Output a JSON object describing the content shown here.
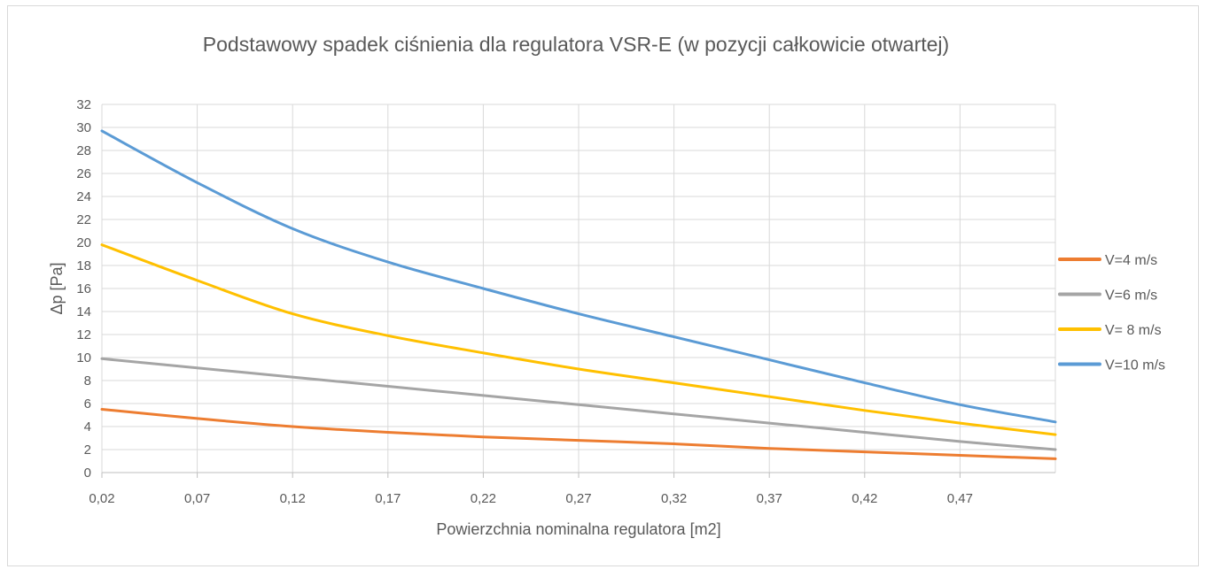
{
  "chart_data": {
    "type": "line",
    "title": "Podstawowy spadek ciśnienia dla regulatora VSR-E (w pozycji całkowicie otwartej)",
    "xlabel": "Powierzchnia nominalna regulatora [m2]",
    "ylabel": "Δp [Pa]",
    "xlim": [
      0.02,
      0.52
    ],
    "ylim": [
      0,
      32
    ],
    "x_ticks": [
      0.02,
      0.07,
      0.12,
      0.17,
      0.22,
      0.27,
      0.32,
      0.37,
      0.42,
      0.47
    ],
    "x_tick_labels": [
      "0,02",
      "0,07",
      "0,12",
      "0,17",
      "0,22",
      "0,27",
      "0,32",
      "0,37",
      "0,42",
      "0,47"
    ],
    "y_ticks": [
      0,
      2,
      4,
      6,
      8,
      10,
      12,
      14,
      16,
      18,
      20,
      22,
      24,
      26,
      28,
      30,
      32
    ],
    "y_tick_labels": [
      "0",
      "2",
      "4",
      "6",
      "8",
      "10",
      "12",
      "14",
      "16",
      "18",
      "20",
      "22",
      "24",
      "26",
      "28",
      "30",
      "32"
    ],
    "grid": true,
    "legend_position": "right",
    "series": [
      {
        "name": "V=4 m/s",
        "color": "#ed7d31",
        "x": [
          0.02,
          0.07,
          0.12,
          0.17,
          0.22,
          0.27,
          0.32,
          0.37,
          0.42,
          0.47,
          0.52
        ],
        "y": [
          5.5,
          4.7,
          4.0,
          3.5,
          3.1,
          2.8,
          2.5,
          2.1,
          1.8,
          1.5,
          1.2
        ]
      },
      {
        "name": "V=6 m/s",
        "color": "#a5a5a5",
        "x": [
          0.02,
          0.07,
          0.12,
          0.17,
          0.22,
          0.27,
          0.32,
          0.37,
          0.42,
          0.47,
          0.52
        ],
        "y": [
          9.9,
          9.1,
          8.3,
          7.5,
          6.7,
          5.9,
          5.1,
          4.3,
          3.5,
          2.7,
          2.0
        ]
      },
      {
        "name": "V= 8 m/s",
        "color": "#ffc000",
        "x": [
          0.02,
          0.07,
          0.12,
          0.17,
          0.22,
          0.27,
          0.32,
          0.37,
          0.42,
          0.47,
          0.52
        ],
        "y": [
          19.8,
          16.7,
          13.8,
          11.9,
          10.4,
          9.0,
          7.8,
          6.6,
          5.4,
          4.3,
          3.3
        ]
      },
      {
        "name": "V=10 m/s",
        "color": "#5b9bd5",
        "x": [
          0.02,
          0.07,
          0.12,
          0.17,
          0.22,
          0.27,
          0.32,
          0.37,
          0.42,
          0.47,
          0.52
        ],
        "y": [
          29.7,
          25.2,
          21.2,
          18.3,
          16.0,
          13.8,
          11.8,
          9.8,
          7.8,
          5.9,
          4.4
        ]
      }
    ]
  }
}
